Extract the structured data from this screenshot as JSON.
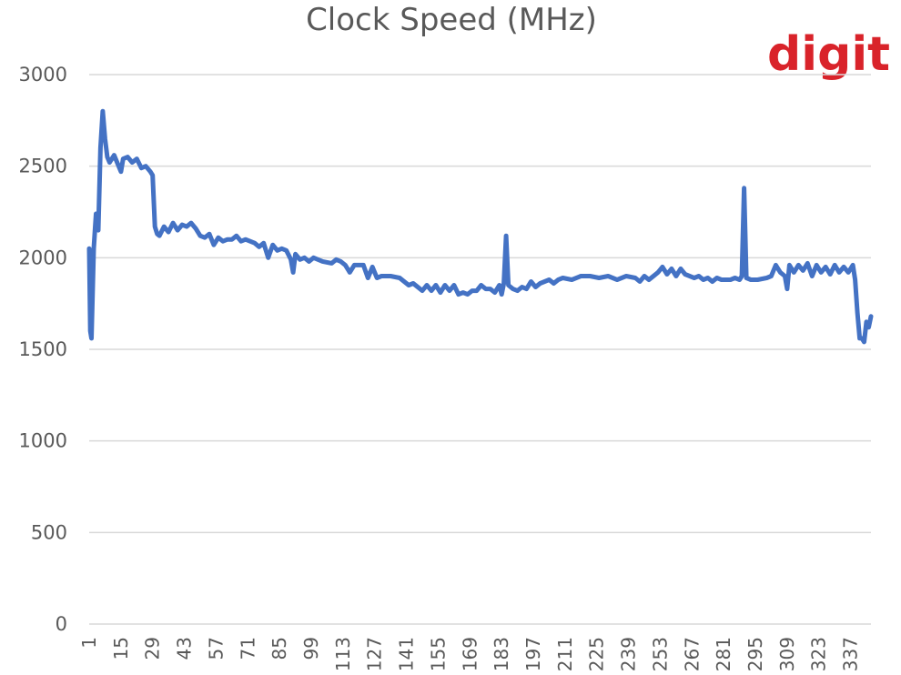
{
  "logo": "digit",
  "colors": {
    "line": "#4472c4",
    "grid": "#d9d9d9",
    "text": "#595959",
    "logo": "#d9232a"
  },
  "chart_data": {
    "type": "line",
    "title": "Clock Speed (MHz)",
    "xlabel": "",
    "ylabel": "",
    "ylim": [
      0,
      3000
    ],
    "yticks": [
      0,
      500,
      1000,
      1500,
      2000,
      2500,
      3000
    ],
    "xticks": [
      1,
      15,
      29,
      43,
      57,
      71,
      85,
      99,
      113,
      127,
      141,
      155,
      169,
      183,
      197,
      211,
      225,
      239,
      253,
      267,
      281,
      295,
      309,
      323,
      337
    ],
    "grid": true,
    "legend": "none",
    "series": [
      {
        "points": [
          [
            1,
            2050
          ],
          [
            1.5,
            1600
          ],
          [
            2,
            1560
          ],
          [
            3,
            2050
          ],
          [
            4,
            2240
          ],
          [
            5,
            2150
          ],
          [
            6,
            2600
          ],
          [
            7,
            2800
          ],
          [
            8,
            2650
          ],
          [
            9,
            2550
          ],
          [
            10,
            2520
          ],
          [
            12,
            2560
          ],
          [
            14,
            2500
          ],
          [
            15,
            2470
          ],
          [
            16,
            2540
          ],
          [
            18,
            2550
          ],
          [
            20,
            2520
          ],
          [
            22,
            2540
          ],
          [
            24,
            2490
          ],
          [
            26,
            2500
          ],
          [
            28,
            2470
          ],
          [
            29,
            2450
          ],
          [
            30,
            2170
          ],
          [
            31,
            2130
          ],
          [
            32,
            2120
          ],
          [
            34,
            2170
          ],
          [
            36,
            2140
          ],
          [
            38,
            2190
          ],
          [
            40,
            2150
          ],
          [
            42,
            2180
          ],
          [
            44,
            2170
          ],
          [
            46,
            2190
          ],
          [
            48,
            2160
          ],
          [
            50,
            2120
          ],
          [
            52,
            2110
          ],
          [
            54,
            2130
          ],
          [
            56,
            2070
          ],
          [
            58,
            2110
          ],
          [
            60,
            2090
          ],
          [
            62,
            2100
          ],
          [
            64,
            2100
          ],
          [
            66,
            2120
          ],
          [
            68,
            2090
          ],
          [
            70,
            2100
          ],
          [
            72,
            2090
          ],
          [
            74,
            2080
          ],
          [
            76,
            2060
          ],
          [
            78,
            2080
          ],
          [
            80,
            2000
          ],
          [
            82,
            2070
          ],
          [
            84,
            2040
          ],
          [
            86,
            2050
          ],
          [
            88,
            2040
          ],
          [
            90,
            1990
          ],
          [
            91,
            1920
          ],
          [
            92,
            2020
          ],
          [
            94,
            1990
          ],
          [
            96,
            2000
          ],
          [
            98,
            1980
          ],
          [
            100,
            2000
          ],
          [
            104,
            1980
          ],
          [
            108,
            1970
          ],
          [
            110,
            1990
          ],
          [
            112,
            1980
          ],
          [
            114,
            1960
          ],
          [
            116,
            1920
          ],
          [
            118,
            1960
          ],
          [
            122,
            1960
          ],
          [
            124,
            1890
          ],
          [
            126,
            1950
          ],
          [
            128,
            1890
          ],
          [
            130,
            1900
          ],
          [
            134,
            1900
          ],
          [
            138,
            1890
          ],
          [
            140,
            1870
          ],
          [
            142,
            1850
          ],
          [
            144,
            1860
          ],
          [
            146,
            1840
          ],
          [
            148,
            1820
          ],
          [
            150,
            1850
          ],
          [
            152,
            1820
          ],
          [
            154,
            1850
          ],
          [
            156,
            1810
          ],
          [
            158,
            1850
          ],
          [
            160,
            1820
          ],
          [
            162,
            1850
          ],
          [
            164,
            1800
          ],
          [
            166,
            1810
          ],
          [
            168,
            1800
          ],
          [
            170,
            1820
          ],
          [
            172,
            1820
          ],
          [
            174,
            1850
          ],
          [
            176,
            1830
          ],
          [
            178,
            1830
          ],
          [
            180,
            1810
          ],
          [
            182,
            1850
          ],
          [
            183,
            1800
          ],
          [
            184,
            1860
          ],
          [
            185,
            2120
          ],
          [
            186,
            1850
          ],
          [
            188,
            1830
          ],
          [
            190,
            1820
          ],
          [
            192,
            1840
          ],
          [
            194,
            1830
          ],
          [
            196,
            1870
          ],
          [
            198,
            1840
          ],
          [
            200,
            1860
          ],
          [
            202,
            1870
          ],
          [
            204,
            1880
          ],
          [
            206,
            1860
          ],
          [
            208,
            1880
          ],
          [
            210,
            1890
          ],
          [
            214,
            1880
          ],
          [
            218,
            1900
          ],
          [
            222,
            1900
          ],
          [
            226,
            1890
          ],
          [
            230,
            1900
          ],
          [
            234,
            1880
          ],
          [
            238,
            1900
          ],
          [
            242,
            1890
          ],
          [
            244,
            1870
          ],
          [
            246,
            1900
          ],
          [
            248,
            1880
          ],
          [
            250,
            1900
          ],
          [
            252,
            1920
          ],
          [
            254,
            1950
          ],
          [
            256,
            1910
          ],
          [
            258,
            1940
          ],
          [
            260,
            1900
          ],
          [
            262,
            1940
          ],
          [
            264,
            1910
          ],
          [
            266,
            1900
          ],
          [
            268,
            1890
          ],
          [
            270,
            1900
          ],
          [
            272,
            1880
          ],
          [
            274,
            1890
          ],
          [
            276,
            1870
          ],
          [
            278,
            1890
          ],
          [
            280,
            1880
          ],
          [
            284,
            1880
          ],
          [
            286,
            1890
          ],
          [
            288,
            1880
          ],
          [
            289,
            1900
          ],
          [
            290,
            2380
          ],
          [
            291,
            1890
          ],
          [
            293,
            1880
          ],
          [
            296,
            1880
          ],
          [
            300,
            1890
          ],
          [
            302,
            1900
          ],
          [
            304,
            1960
          ],
          [
            306,
            1920
          ],
          [
            308,
            1900
          ],
          [
            309,
            1830
          ],
          [
            310,
            1960
          ],
          [
            312,
            1920
          ],
          [
            314,
            1960
          ],
          [
            316,
            1930
          ],
          [
            318,
            1970
          ],
          [
            320,
            1900
          ],
          [
            322,
            1960
          ],
          [
            324,
            1920
          ],
          [
            326,
            1950
          ],
          [
            328,
            1910
          ],
          [
            330,
            1960
          ],
          [
            332,
            1920
          ],
          [
            334,
            1950
          ],
          [
            336,
            1920
          ],
          [
            338,
            1960
          ],
          [
            339,
            1880
          ],
          [
            340,
            1700
          ],
          [
            341,
            1560
          ],
          [
            342,
            1560
          ],
          [
            343,
            1540
          ],
          [
            344,
            1650
          ],
          [
            345,
            1620
          ],
          [
            346,
            1680
          ]
        ]
      }
    ]
  }
}
